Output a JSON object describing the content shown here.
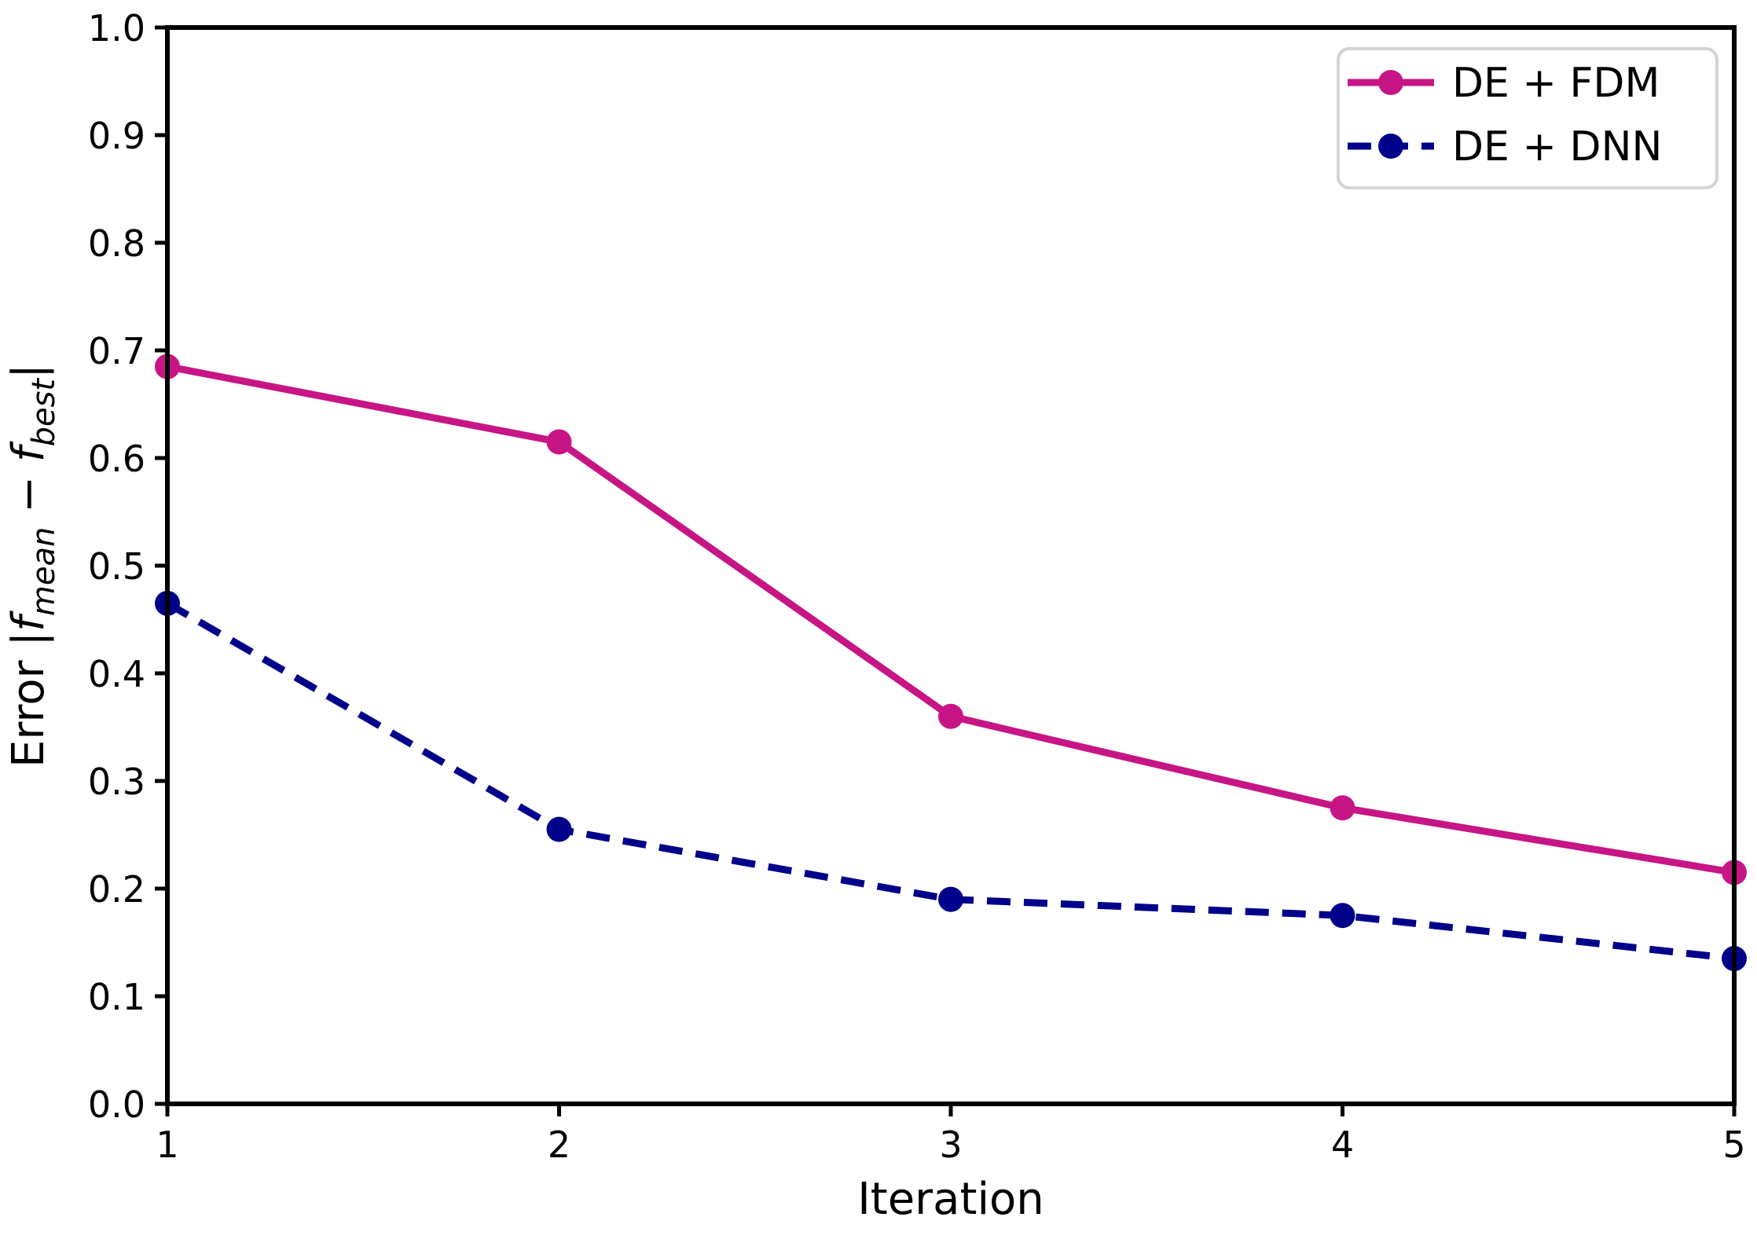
{
  "figure": {
    "background": "#ffffff",
    "axis_color": "#000000",
    "legend_frame_color": "#d4d4d4"
  },
  "chart_data": {
    "type": "line",
    "title": "",
    "xlabel": "Iteration",
    "ylabel": "Error |f_mean − f_best|",
    "ylabel_rich": [
      {
        "text": "Error |",
        "style": "normal"
      },
      {
        "text": "f",
        "style": "italic"
      },
      {
        "text": "mean",
        "style": "sub-italic"
      },
      {
        "text": " − ",
        "style": "normal"
      },
      {
        "text": "f",
        "style": "italic"
      },
      {
        "text": "best",
        "style": "sub-italic"
      },
      {
        "text": "|",
        "style": "normal"
      }
    ],
    "x": [
      1,
      2,
      3,
      4,
      5
    ],
    "xlim": [
      1,
      5
    ],
    "ylim": [
      0.0,
      1.0
    ],
    "xticks": [
      "1",
      "2",
      "3",
      "4",
      "5"
    ],
    "yticks": [
      "0.0",
      "0.1",
      "0.2",
      "0.3",
      "0.4",
      "0.5",
      "0.6",
      "0.7",
      "0.8",
      "0.9",
      "1.0"
    ],
    "grid": false,
    "legend": {
      "position": "top-right",
      "entries": [
        "DE + FDM",
        "DE + DNN"
      ]
    },
    "series": [
      {
        "name": "DE + FDM",
        "color": "#C71585",
        "line_style": "solid",
        "marker": "circle",
        "values": [
          0.685,
          0.615,
          0.36,
          0.275,
          0.215
        ]
      },
      {
        "name": "DE + DNN",
        "color": "#00008B",
        "line_style": "dashed",
        "marker": "circle",
        "values": [
          0.465,
          0.255,
          0.19,
          0.175,
          0.135
        ]
      }
    ]
  }
}
